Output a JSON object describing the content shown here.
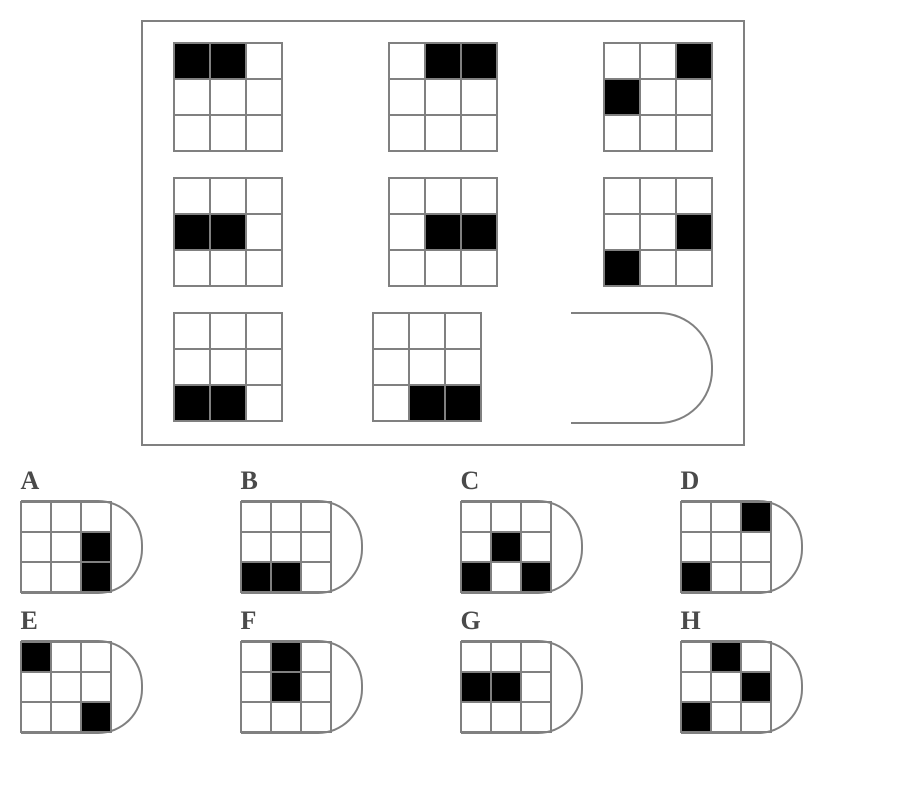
{
  "puzzle": {
    "type": "matrix-reasoning",
    "grid_size": 3,
    "cell_border_color": "#808080",
    "fill_color": "#000000",
    "background_color": "#ffffff",
    "label_color": "#4a4a4a",
    "label_fontsize": 26,
    "main_grids": [
      [
        [
          1,
          1,
          0
        ],
        [
          0,
          0,
          0
        ],
        [
          0,
          0,
          0
        ]
      ],
      [
        [
          0,
          1,
          1
        ],
        [
          0,
          0,
          0
        ],
        [
          0,
          0,
          0
        ]
      ],
      [
        [
          0,
          0,
          1
        ],
        [
          1,
          0,
          0
        ],
        [
          0,
          0,
          0
        ]
      ],
      [
        [
          0,
          0,
          0
        ],
        [
          1,
          1,
          0
        ],
        [
          0,
          0,
          0
        ]
      ],
      [
        [
          0,
          0,
          0
        ],
        [
          0,
          1,
          1
        ],
        [
          0,
          0,
          0
        ]
      ],
      [
        [
          0,
          0,
          0
        ],
        [
          0,
          0,
          1
        ],
        [
          1,
          0,
          0
        ]
      ],
      [
        [
          0,
          0,
          0
        ],
        [
          0,
          0,
          0
        ],
        [
          1,
          1,
          0
        ]
      ],
      [
        [
          0,
          0,
          0
        ],
        [
          0,
          0,
          0
        ],
        [
          0,
          1,
          1
        ]
      ]
    ],
    "options": {
      "A": [
        [
          0,
          0,
          0
        ],
        [
          0,
          0,
          1
        ],
        [
          0,
          0,
          1
        ]
      ],
      "B": [
        [
          0,
          0,
          0
        ],
        [
          0,
          0,
          0
        ],
        [
          1,
          1,
          0
        ]
      ],
      "C": [
        [
          0,
          0,
          0
        ],
        [
          0,
          1,
          0
        ],
        [
          1,
          0,
          1
        ]
      ],
      "D": [
        [
          0,
          0,
          1
        ],
        [
          0,
          0,
          0
        ],
        [
          1,
          0,
          0
        ]
      ],
      "E": [
        [
          1,
          0,
          0
        ],
        [
          0,
          0,
          0
        ],
        [
          0,
          0,
          1
        ]
      ],
      "F": [
        [
          0,
          1,
          0
        ],
        [
          0,
          1,
          0
        ],
        [
          0,
          0,
          0
        ]
      ],
      "G": [
        [
          0,
          0,
          0
        ],
        [
          1,
          1,
          0
        ],
        [
          0,
          0,
          0
        ]
      ],
      "H": [
        [
          0,
          1,
          0
        ],
        [
          0,
          0,
          1
        ],
        [
          1,
          0,
          0
        ]
      ]
    },
    "option_labels": [
      "A",
      "B",
      "C",
      "D",
      "E",
      "F",
      "G",
      "H"
    ]
  }
}
